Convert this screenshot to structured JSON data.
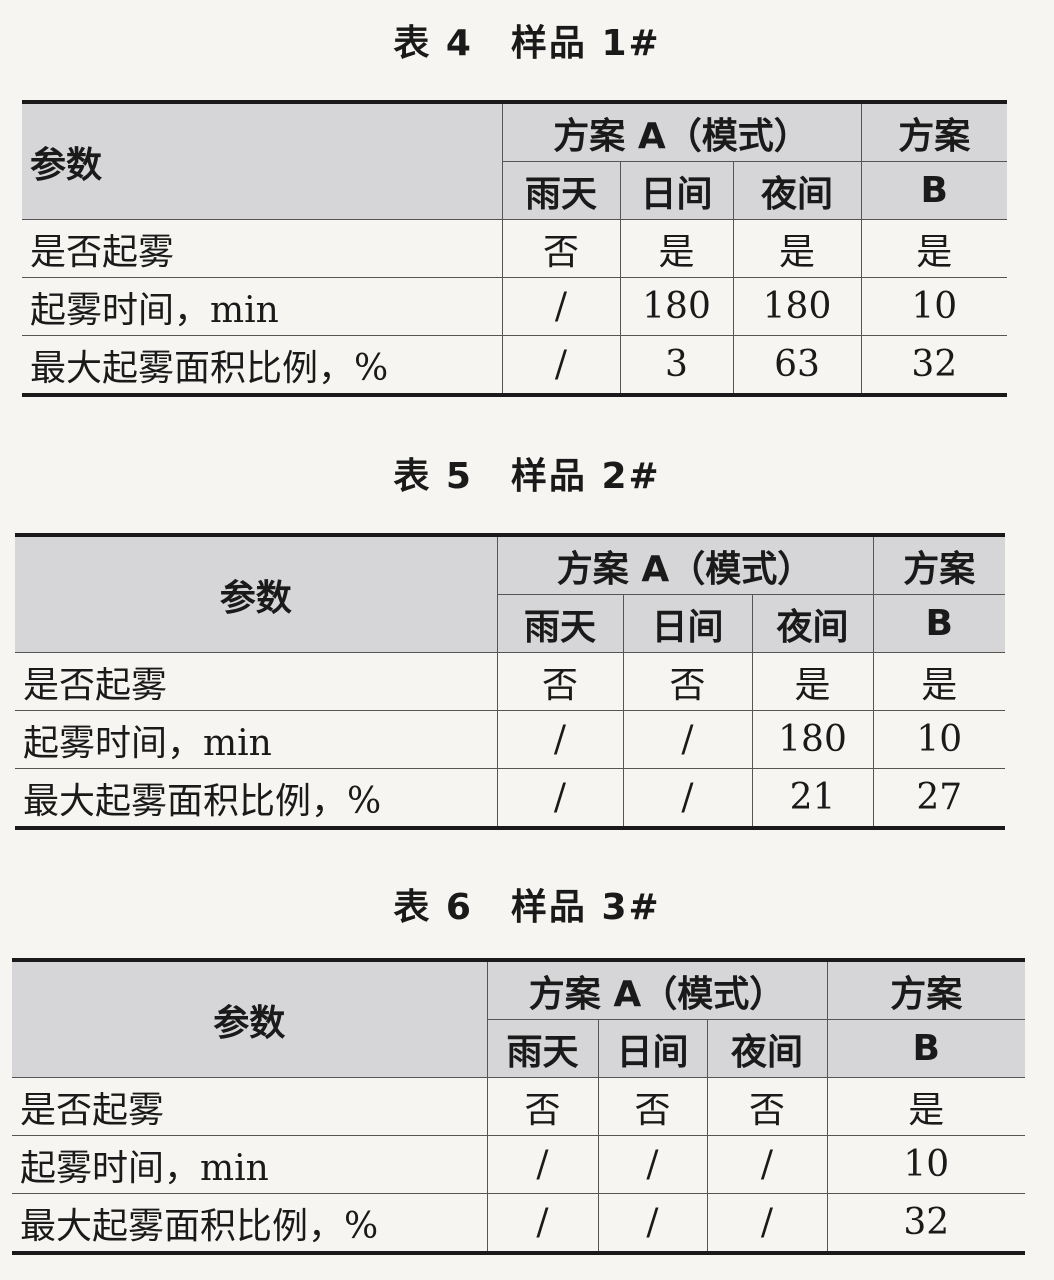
{
  "header_labels": {
    "param": "参数",
    "scheme_a": "方案 A（模式）",
    "scheme_b_line1": "方案",
    "scheme_b_line2": "B",
    "modes": [
      "雨天",
      "日间",
      "夜间"
    ]
  },
  "tables": [
    {
      "title": "表 4　样品 1#",
      "param_align": "left",
      "rows": [
        {
          "param": "是否起雾",
          "values": [
            "否",
            "是",
            "是",
            "是"
          ]
        },
        {
          "param": "起雾时间，min",
          "values": [
            "/",
            "180",
            "180",
            "10"
          ]
        },
        {
          "param": "最大起雾面积比例，%",
          "values": [
            "/",
            "3",
            "63",
            "32"
          ]
        }
      ]
    },
    {
      "title": "表 5　样品 2#",
      "param_align": "center",
      "rows": [
        {
          "param": "是否起雾",
          "values": [
            "否",
            "否",
            "是",
            "是"
          ]
        },
        {
          "param": "起雾时间，min",
          "values": [
            "/",
            "/",
            "180",
            "10"
          ]
        },
        {
          "param": "最大起雾面积比例，%",
          "values": [
            "/",
            "/",
            "21",
            "27"
          ]
        }
      ]
    },
    {
      "title": "表 6　样品 3#",
      "param_align": "center",
      "rows": [
        {
          "param": "是否起雾",
          "values": [
            "否",
            "否",
            "否",
            "是"
          ]
        },
        {
          "param": "起雾时间，min",
          "values": [
            "/",
            "/",
            "/",
            "10"
          ]
        },
        {
          "param": "最大起雾面积比例，%",
          "values": [
            "/",
            "/",
            "/",
            "32"
          ]
        }
      ]
    }
  ]
}
